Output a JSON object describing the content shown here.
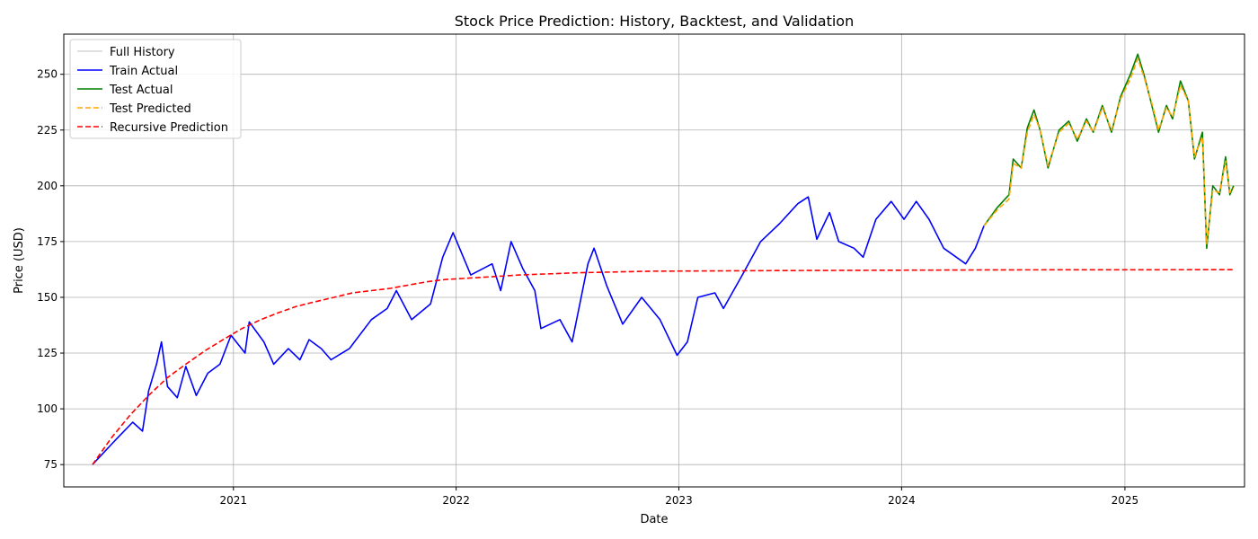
{
  "chart_data": {
    "type": "line",
    "title": "Stock Price Prediction: History, Backtest, and Validation",
    "xlabel": "Date",
    "ylabel": "Price (USD)",
    "xlim": [
      "2020-03-29",
      "2025-07-16"
    ],
    "ylim": [
      65,
      268
    ],
    "grid": true,
    "legend_position": "top-left",
    "x_ticks": [
      {
        "date": "2021-01-01",
        "label": "2021"
      },
      {
        "date": "2022-01-01",
        "label": "2022"
      },
      {
        "date": "2023-01-01",
        "label": "2023"
      },
      {
        "date": "2024-01-01",
        "label": "2024"
      },
      {
        "date": "2025-01-01",
        "label": "2025"
      }
    ],
    "y_ticks": [
      75,
      100,
      125,
      150,
      175,
      200,
      225,
      250
    ],
    "series": [
      {
        "name": "Full History",
        "color": "#cccccc",
        "style": "solid",
        "points": [
          [
            "2020-05-15",
            75
          ],
          [
            "2020-06-01",
            80
          ],
          [
            "2020-06-25",
            87
          ],
          [
            "2020-07-20",
            94
          ],
          [
            "2020-08-05",
            90
          ],
          [
            "2020-08-15",
            108
          ],
          [
            "2020-08-28",
            120
          ],
          [
            "2020-09-05",
            130
          ],
          [
            "2020-09-15",
            110
          ],
          [
            "2020-10-01",
            105
          ],
          [
            "2020-10-15",
            119
          ],
          [
            "2020-11-01",
            106
          ],
          [
            "2020-11-20",
            116
          ],
          [
            "2020-12-10",
            120
          ],
          [
            "2020-12-28",
            133
          ],
          [
            "2021-01-20",
            125
          ],
          [
            "2021-01-27",
            139
          ],
          [
            "2021-02-20",
            130
          ],
          [
            "2021-03-08",
            120
          ],
          [
            "2021-04-01",
            127
          ],
          [
            "2021-04-20",
            122
          ],
          [
            "2021-05-05",
            131
          ],
          [
            "2021-05-25",
            127
          ],
          [
            "2021-06-10",
            122
          ],
          [
            "2021-07-10",
            127
          ],
          [
            "2021-08-15",
            140
          ],
          [
            "2021-09-10",
            145
          ],
          [
            "2021-09-25",
            153
          ],
          [
            "2021-10-20",
            140
          ],
          [
            "2021-11-20",
            147
          ],
          [
            "2021-12-10",
            168
          ],
          [
            "2021-12-27",
            179
          ],
          [
            "2022-01-25",
            160
          ],
          [
            "2022-03-01",
            165
          ],
          [
            "2022-03-15",
            153
          ],
          [
            "2022-04-01",
            175
          ],
          [
            "2022-04-20",
            163
          ],
          [
            "2022-05-10",
            153
          ],
          [
            "2022-05-20",
            136
          ],
          [
            "2022-06-20",
            140
          ],
          [
            "2022-07-10",
            130
          ],
          [
            "2022-08-05",
            165
          ],
          [
            "2022-08-15",
            172
          ],
          [
            "2022-09-05",
            155
          ],
          [
            "2022-10-01",
            138
          ],
          [
            "2022-11-01",
            150
          ],
          [
            "2022-12-01",
            140
          ],
          [
            "2022-12-29",
            124
          ],
          [
            "2023-01-15",
            130
          ],
          [
            "2023-02-01",
            150
          ],
          [
            "2023-03-01",
            152
          ],
          [
            "2023-03-15",
            145
          ],
          [
            "2023-04-15",
            160
          ],
          [
            "2023-05-15",
            175
          ],
          [
            "2023-06-15",
            183
          ],
          [
            "2023-07-15",
            192
          ],
          [
            "2023-08-01",
            195
          ],
          [
            "2023-08-15",
            176
          ],
          [
            "2023-09-05",
            188
          ],
          [
            "2023-09-20",
            175
          ],
          [
            "2023-10-15",
            172
          ],
          [
            "2023-10-30",
            168
          ],
          [
            "2023-11-20",
            185
          ],
          [
            "2023-12-15",
            193
          ],
          [
            "2024-01-05",
            185
          ],
          [
            "2024-01-25",
            193
          ],
          [
            "2024-02-15",
            185
          ],
          [
            "2024-03-10",
            172
          ],
          [
            "2024-04-15",
            165
          ],
          [
            "2024-05-01",
            172
          ],
          [
            "2024-05-15",
            182
          ]
        ]
      },
      {
        "name": "Train Actual",
        "color": "#0000ff",
        "style": "solid",
        "points": [
          [
            "2020-05-15",
            75
          ],
          [
            "2020-06-01",
            80
          ],
          [
            "2020-06-25",
            87
          ],
          [
            "2020-07-20",
            94
          ],
          [
            "2020-08-05",
            90
          ],
          [
            "2020-08-15",
            108
          ],
          [
            "2020-08-28",
            120
          ],
          [
            "2020-09-05",
            130
          ],
          [
            "2020-09-15",
            110
          ],
          [
            "2020-10-01",
            105
          ],
          [
            "2020-10-15",
            119
          ],
          [
            "2020-11-01",
            106
          ],
          [
            "2020-11-20",
            116
          ],
          [
            "2020-12-10",
            120
          ],
          [
            "2020-12-28",
            133
          ],
          [
            "2021-01-20",
            125
          ],
          [
            "2021-01-27",
            139
          ],
          [
            "2021-02-20",
            130
          ],
          [
            "2021-03-08",
            120
          ],
          [
            "2021-04-01",
            127
          ],
          [
            "2021-04-20",
            122
          ],
          [
            "2021-05-05",
            131
          ],
          [
            "2021-05-25",
            127
          ],
          [
            "2021-06-10",
            122
          ],
          [
            "2021-07-10",
            127
          ],
          [
            "2021-08-15",
            140
          ],
          [
            "2021-09-10",
            145
          ],
          [
            "2021-09-25",
            153
          ],
          [
            "2021-10-20",
            140
          ],
          [
            "2021-11-20",
            147
          ],
          [
            "2021-12-10",
            168
          ],
          [
            "2021-12-27",
            179
          ],
          [
            "2022-01-25",
            160
          ],
          [
            "2022-03-01",
            165
          ],
          [
            "2022-03-15",
            153
          ],
          [
            "2022-04-01",
            175
          ],
          [
            "2022-04-20",
            163
          ],
          [
            "2022-05-10",
            153
          ],
          [
            "2022-05-20",
            136
          ],
          [
            "2022-06-20",
            140
          ],
          [
            "2022-07-10",
            130
          ],
          [
            "2022-08-05",
            165
          ],
          [
            "2022-08-15",
            172
          ],
          [
            "2022-09-05",
            155
          ],
          [
            "2022-10-01",
            138
          ],
          [
            "2022-11-01",
            150
          ],
          [
            "2022-12-01",
            140
          ],
          [
            "2022-12-29",
            124
          ],
          [
            "2023-01-15",
            130
          ],
          [
            "2023-02-01",
            150
          ],
          [
            "2023-03-01",
            152
          ],
          [
            "2023-03-15",
            145
          ],
          [
            "2023-04-15",
            160
          ],
          [
            "2023-05-15",
            175
          ],
          [
            "2023-06-15",
            183
          ],
          [
            "2023-07-15",
            192
          ],
          [
            "2023-08-01",
            195
          ],
          [
            "2023-08-15",
            176
          ],
          [
            "2023-09-05",
            188
          ],
          [
            "2023-09-20",
            175
          ],
          [
            "2023-10-15",
            172
          ],
          [
            "2023-10-30",
            168
          ],
          [
            "2023-11-20",
            185
          ],
          [
            "2023-12-15",
            193
          ],
          [
            "2024-01-05",
            185
          ],
          [
            "2024-01-25",
            193
          ],
          [
            "2024-02-15",
            185
          ],
          [
            "2024-03-10",
            172
          ],
          [
            "2024-04-15",
            165
          ],
          [
            "2024-05-01",
            172
          ],
          [
            "2024-05-15",
            182
          ]
        ]
      },
      {
        "name": "Test Actual",
        "color": "#008000",
        "style": "solid",
        "points": [
          [
            "2024-05-15",
            182
          ],
          [
            "2024-06-05",
            190
          ],
          [
            "2024-06-25",
            196
          ],
          [
            "2024-07-02",
            212
          ],
          [
            "2024-07-15",
            208
          ],
          [
            "2024-07-25",
            226
          ],
          [
            "2024-08-05",
            234
          ],
          [
            "2024-08-15",
            225
          ],
          [
            "2024-08-28",
            208
          ],
          [
            "2024-09-15",
            225
          ],
          [
            "2024-10-01",
            229
          ],
          [
            "2024-10-15",
            220
          ],
          [
            "2024-10-30",
            230
          ],
          [
            "2024-11-10",
            224
          ],
          [
            "2024-11-25",
            236
          ],
          [
            "2024-12-10",
            224
          ],
          [
            "2024-12-25",
            240
          ],
          [
            "2025-01-10",
            250
          ],
          [
            "2025-01-22",
            259
          ],
          [
            "2025-02-01",
            250
          ],
          [
            "2025-02-15",
            235
          ],
          [
            "2025-02-25",
            224
          ],
          [
            "2025-03-10",
            236
          ],
          [
            "2025-03-20",
            230
          ],
          [
            "2025-04-02",
            247
          ],
          [
            "2025-04-15",
            238
          ],
          [
            "2025-04-25",
            212
          ],
          [
            "2025-05-08",
            224
          ],
          [
            "2025-05-15",
            172
          ],
          [
            "2025-05-25",
            200
          ],
          [
            "2025-06-05",
            196
          ],
          [
            "2025-06-15",
            213
          ],
          [
            "2025-06-22",
            196
          ],
          [
            "2025-06-28",
            200
          ]
        ]
      },
      {
        "name": "Test Predicted",
        "color": "#ffa500",
        "style": "dashed",
        "points": [
          [
            "2024-05-15",
            182
          ],
          [
            "2024-06-05",
            189
          ],
          [
            "2024-06-25",
            194
          ],
          [
            "2024-07-02",
            210
          ],
          [
            "2024-07-15",
            208
          ],
          [
            "2024-07-25",
            224
          ],
          [
            "2024-08-05",
            232
          ],
          [
            "2024-08-15",
            225
          ],
          [
            "2024-08-28",
            209
          ],
          [
            "2024-09-15",
            224
          ],
          [
            "2024-10-01",
            228
          ],
          [
            "2024-10-15",
            221
          ],
          [
            "2024-10-30",
            229
          ],
          [
            "2024-11-10",
            224
          ],
          [
            "2024-11-25",
            235
          ],
          [
            "2024-12-10",
            225
          ],
          [
            "2024-12-25",
            239
          ],
          [
            "2025-01-10",
            248
          ],
          [
            "2025-01-22",
            257
          ],
          [
            "2025-02-01",
            249
          ],
          [
            "2025-02-15",
            236
          ],
          [
            "2025-02-25",
            225
          ],
          [
            "2025-03-10",
            235
          ],
          [
            "2025-03-20",
            231
          ],
          [
            "2025-04-02",
            245
          ],
          [
            "2025-04-15",
            238
          ],
          [
            "2025-04-25",
            213
          ],
          [
            "2025-05-08",
            222
          ],
          [
            "2025-05-15",
            174
          ],
          [
            "2025-05-25",
            198
          ],
          [
            "2025-06-05",
            197
          ],
          [
            "2025-06-15",
            211
          ],
          [
            "2025-06-22",
            197
          ],
          [
            "2025-06-28",
            199
          ]
        ]
      },
      {
        "name": "Recursive Prediction",
        "color": "#ff0000",
        "style": "dashed",
        "points": [
          [
            "2020-05-15",
            75
          ],
          [
            "2020-06-15",
            87
          ],
          [
            "2020-07-15",
            97
          ],
          [
            "2020-08-15",
            106
          ],
          [
            "2020-09-15",
            114
          ],
          [
            "2020-10-15",
            120
          ],
          [
            "2020-11-15",
            126
          ],
          [
            "2020-12-15",
            131
          ],
          [
            "2021-01-15",
            136
          ],
          [
            "2021-02-15",
            140
          ],
          [
            "2021-03-15",
            143
          ],
          [
            "2021-04-15",
            146
          ],
          [
            "2021-05-15",
            148
          ],
          [
            "2021-06-15",
            150
          ],
          [
            "2021-07-15",
            152
          ],
          [
            "2021-08-15",
            153
          ],
          [
            "2021-09-15",
            154
          ],
          [
            "2021-10-15",
            155.5
          ],
          [
            "2021-11-15",
            157
          ],
          [
            "2021-12-15",
            158
          ],
          [
            "2022-02-15",
            159
          ],
          [
            "2022-04-15",
            160
          ],
          [
            "2022-07-15",
            161
          ],
          [
            "2022-11-15",
            161.7
          ],
          [
            "2023-06-15",
            162
          ],
          [
            "2024-06-15",
            162.3
          ],
          [
            "2025-06-28",
            162.4
          ]
        ]
      }
    ]
  }
}
